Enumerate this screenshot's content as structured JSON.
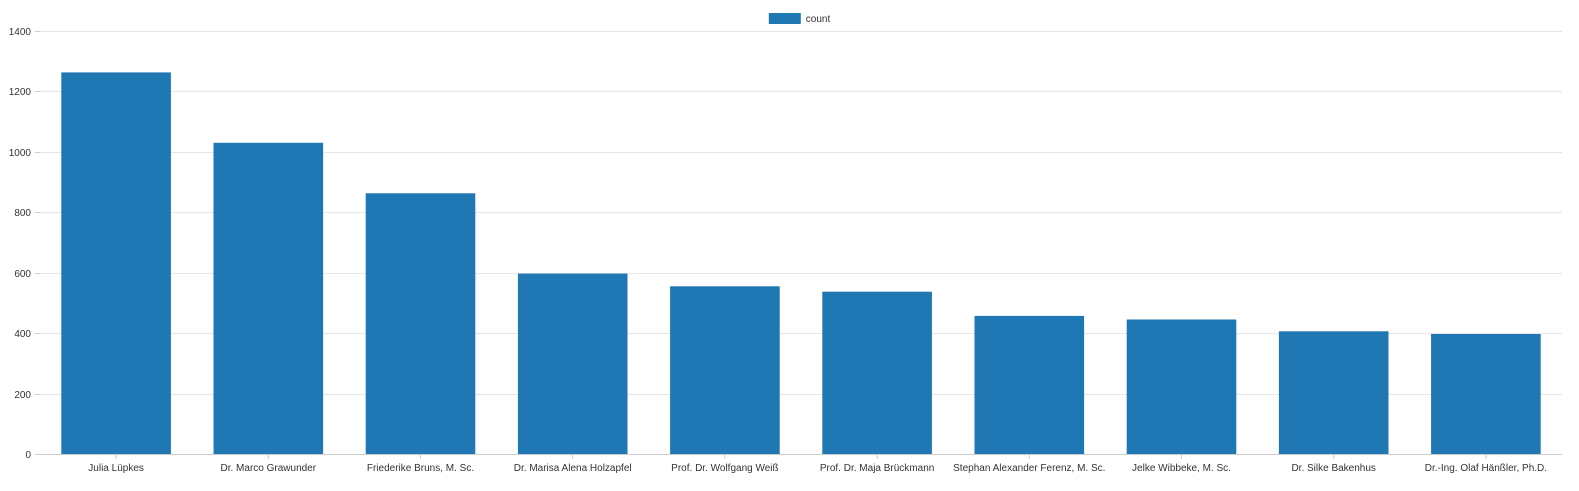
{
  "chart_data": {
    "type": "bar",
    "title": "",
    "xlabel": "",
    "ylabel": "",
    "ylim": [
      0,
      1400
    ],
    "yticks": [
      0,
      200,
      400,
      600,
      800,
      1000,
      1200,
      1400
    ],
    "grid": true,
    "legend": {
      "position": "top-center",
      "entries": [
        "count"
      ]
    },
    "categories": [
      "Julia Lüpkes",
      "Dr. Marco Grawunder",
      "Friederike Bruns, M. Sc.",
      "Dr. Marisa Alena Holzapfel",
      "Prof. Dr. Wolfgang Weiß",
      "Prof. Dr. Maja Brückmann",
      "Stephan Alexander Ferenz, M. Sc.",
      "Jelke Wibbeke, M. Sc.",
      "Dr. Silke Bakenhus",
      "Dr.-Ing. Olaf Hänßler, Ph.D."
    ],
    "series": [
      {
        "name": "count",
        "color": "#1f77b4",
        "values": [
          1263,
          1030,
          863,
          597,
          555,
          537,
          457,
          445,
          406,
          397
        ]
      }
    ]
  }
}
